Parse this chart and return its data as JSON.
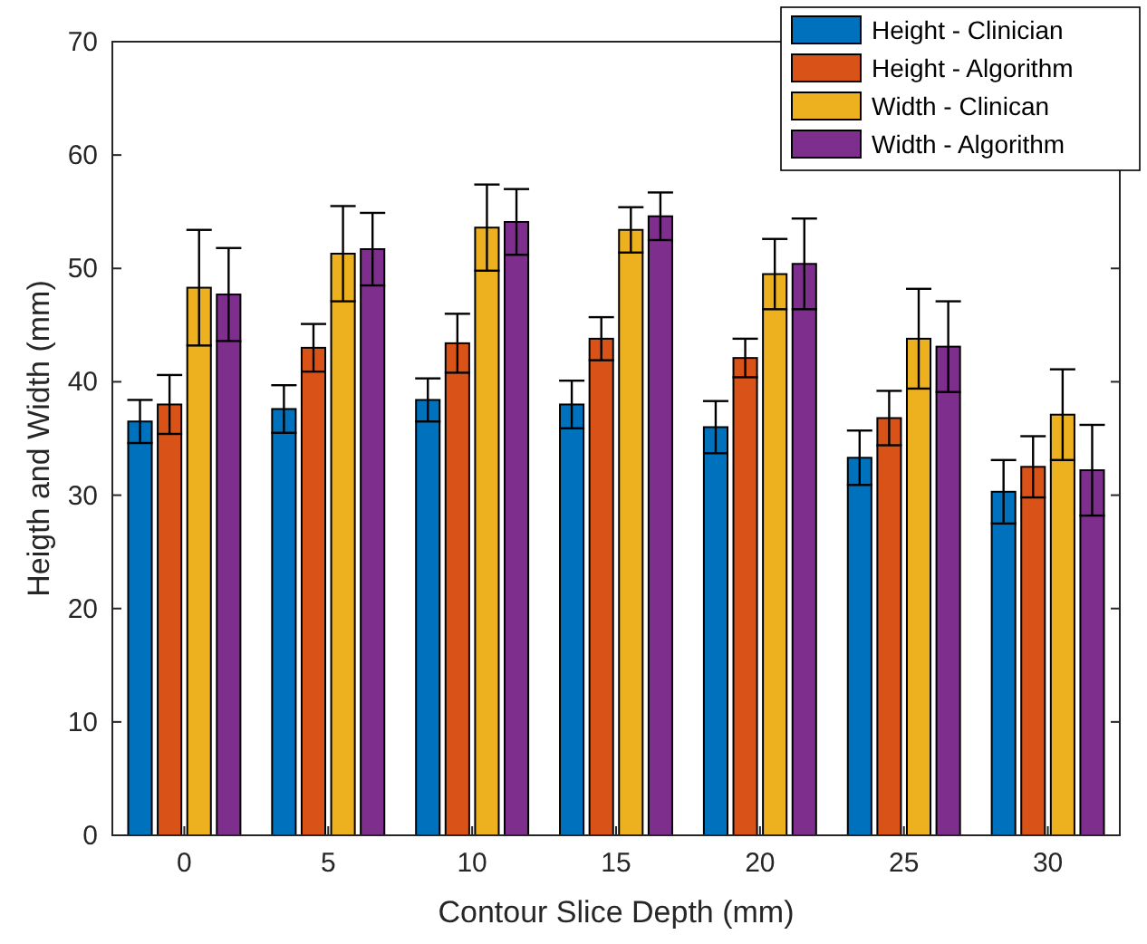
{
  "chart_data": {
    "type": "bar",
    "xlabel": "Contour Slice Depth (mm)",
    "ylabel": "Heigth and Width (mm)",
    "categories": [
      "0",
      "5",
      "10",
      "15",
      "20",
      "25",
      "30"
    ],
    "series": [
      {
        "name": "Height - Clinician",
        "color": "#0072bd",
        "values": [
          36.5,
          37.6,
          38.4,
          38,
          36,
          33.3,
          30.3
        ],
        "errors": [
          1.9,
          2.1,
          1.9,
          2.1,
          2.3,
          2.4,
          2.8
        ]
      },
      {
        "name": "Height - Algorithm",
        "color": "#d95319",
        "values": [
          38,
          43,
          43.4,
          43.8,
          42.1,
          36.8,
          32.5
        ],
        "errors": [
          2.6,
          2.1,
          2.6,
          1.9,
          1.7,
          2.4,
          2.7
        ]
      },
      {
        "name": "Width - Clinican",
        "color": "#edb120",
        "values": [
          48.3,
          51.3,
          53.6,
          53.4,
          49.5,
          43.8,
          37.1
        ],
        "errors": [
          5.1,
          4.2,
          3.8,
          2,
          3.1,
          4.4,
          4
        ]
      },
      {
        "name": "Width - Algorithm",
        "color": "#7e2f8e",
        "values": [
          47.7,
          51.7,
          54.1,
          54.6,
          50.4,
          43.1,
          32.2
        ],
        "errors": [
          4.1,
          3.2,
          2.9,
          2.1,
          4,
          4,
          4
        ]
      }
    ],
    "ylim": [
      0,
      70
    ],
    "yticks": [
      0,
      10,
      20,
      30,
      40,
      50,
      60,
      70
    ],
    "grid": false,
    "legend": "top right"
  }
}
